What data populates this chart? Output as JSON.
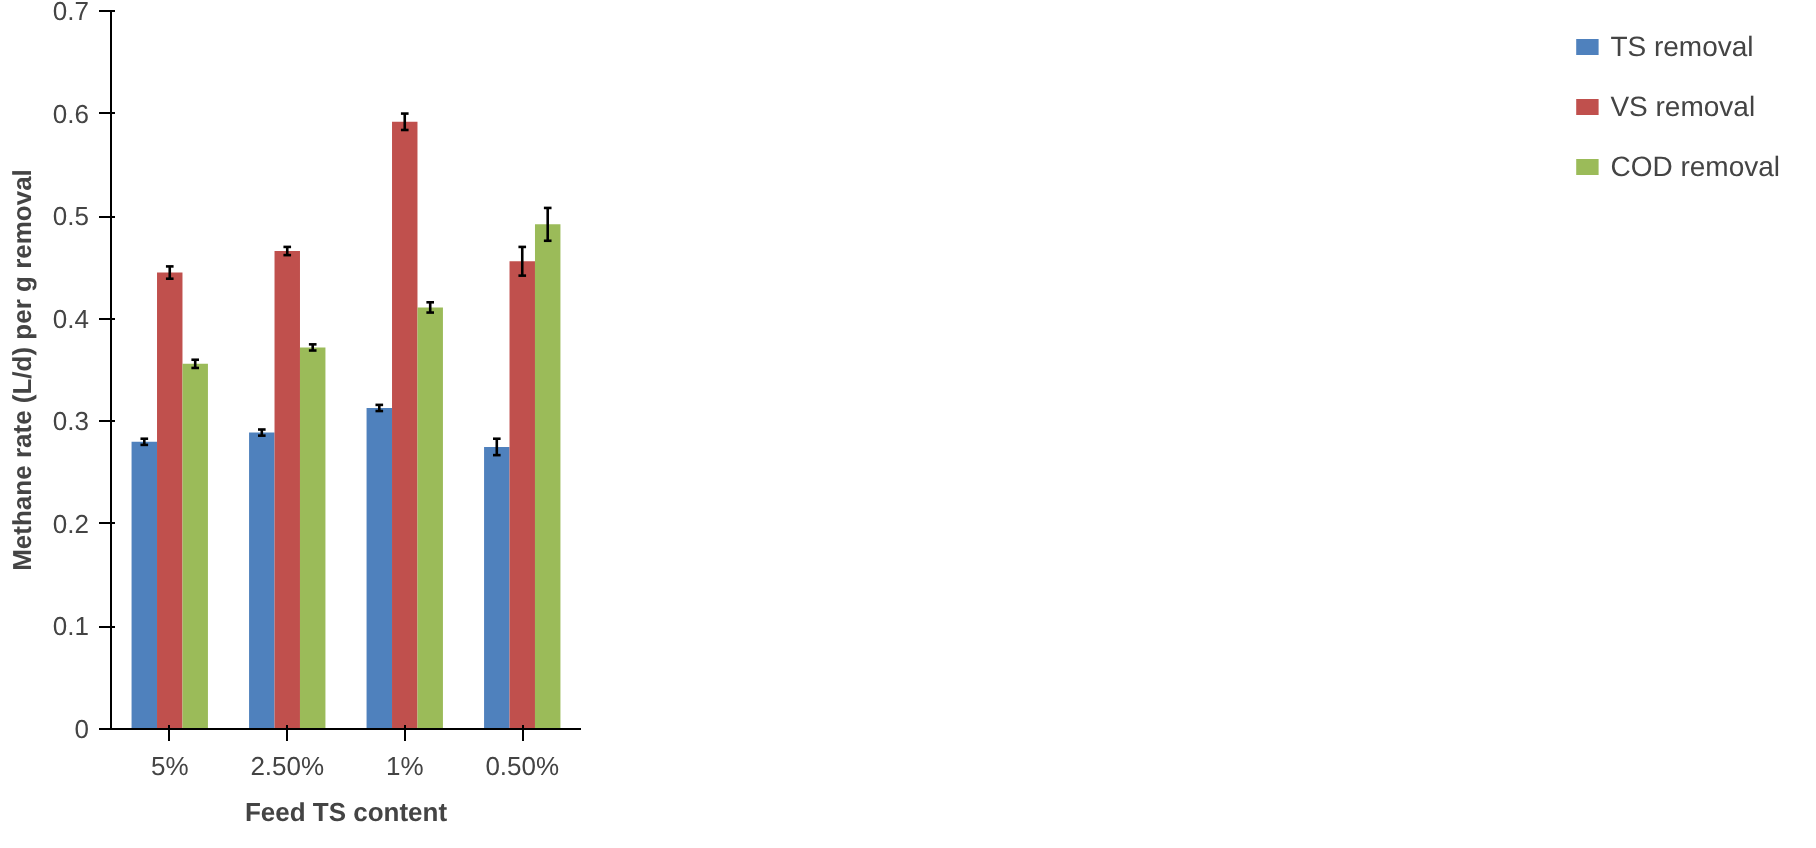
{
  "chart_data": {
    "type": "bar",
    "xlabel": "Feed TS content",
    "ylabel": "Methane rate (L/d) per g removal",
    "categories": [
      "5%",
      "2.50%",
      "1%",
      "0.50%"
    ],
    "series": [
      {
        "name": "TS removal",
        "color": "#4f81bd",
        "values": [
          0.28,
          0.289,
          0.313,
          0.275
        ],
        "errors": [
          0.003,
          0.003,
          0.003,
          0.008
        ]
      },
      {
        "name": "VS removal",
        "color": "#c0504d",
        "values": [
          0.445,
          0.466,
          0.592,
          0.456
        ],
        "errors": [
          0.006,
          0.004,
          0.008,
          0.014
        ]
      },
      {
        "name": "COD removal",
        "color": "#9bbb59",
        "values": [
          0.356,
          0.372,
          0.411,
          0.492
        ],
        "errors": [
          0.004,
          0.003,
          0.005,
          0.016
        ]
      }
    ],
    "ylim": [
      0,
      0.7
    ],
    "yticks": [
      0,
      0.1,
      0.2,
      0.3,
      0.4,
      0.5,
      0.6,
      0.7
    ],
    "grid": false,
    "legend": "right"
  }
}
